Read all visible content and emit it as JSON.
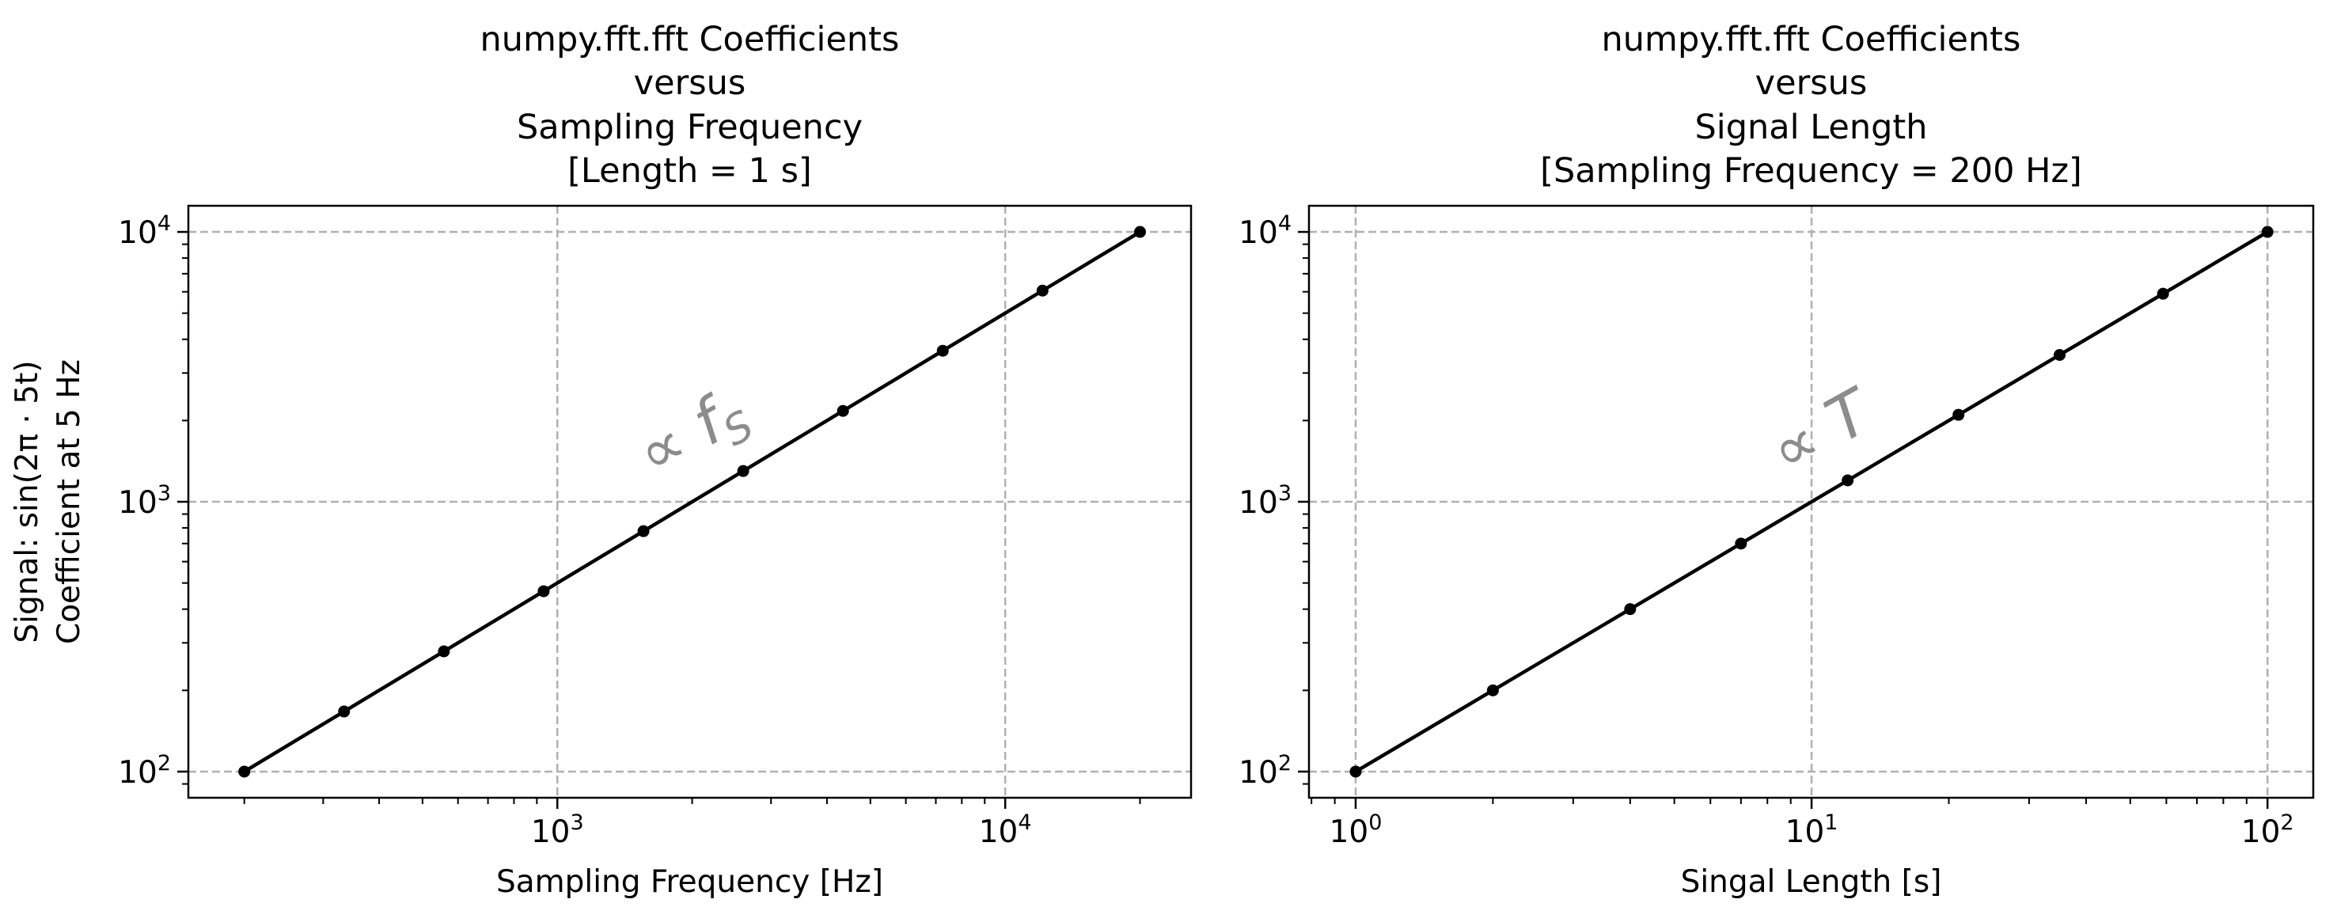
{
  "chart_data": [
    {
      "type": "line",
      "title": [
        "numpy.fft.fft Coefficients",
        "versus",
        "Sampling Frequency",
        "[Length = 1 s]"
      ],
      "xlabel": "Sampling Frequency [Hz]",
      "ylabel": [
        "Signal: sin(2π · 5t)",
        "Coefficient at 5 Hz"
      ],
      "xscale": "log",
      "yscale": "log",
      "xlim": [
        150,
        26000
      ],
      "ylim": [
        80,
        12500
      ],
      "xticks": [
        {
          "base": "10",
          "exp": "3",
          "value": 1000
        },
        {
          "base": "10",
          "exp": "4",
          "value": 10000
        }
      ],
      "yticks": [
        {
          "base": "10",
          "exp": "2",
          "value": 100
        },
        {
          "base": "10",
          "exp": "3",
          "value": 1000
        },
        {
          "base": "10",
          "exp": "4",
          "value": 10000
        }
      ],
      "grid": true,
      "series": [
        {
          "color": "#000000",
          "marker": "circle",
          "x": [
            200,
            334,
            558,
            932,
            1557,
            2600,
            4343,
            7254,
            12115,
            20000
          ],
          "y": [
            100,
            167,
            279,
            466,
            778,
            1300,
            2171,
            3627,
            6058,
            10000
          ]
        }
      ],
      "annotation": {
        "text": "∝ f",
        "sub": "S",
        "x": 2100,
        "y": 1550,
        "rotation_deg": -29,
        "color": "#8c8c8c"
      }
    },
    {
      "type": "line",
      "title": [
        "numpy.fft.fft Coefficients",
        "versus",
        "Signal Length",
        "[Sampling Frequency = 200 Hz]"
      ],
      "xlabel": "Singal Length [s]",
      "ylabel": [],
      "xscale": "log",
      "yscale": "log",
      "xlim": [
        0.79,
        126
      ],
      "ylim": [
        80,
        12500
      ],
      "xticks": [
        {
          "base": "10",
          "exp": "0",
          "value": 1
        },
        {
          "base": "10",
          "exp": "1",
          "value": 10
        },
        {
          "base": "10",
          "exp": "2",
          "value": 100
        }
      ],
      "yticks": [
        {
          "base": "10",
          "exp": "2",
          "value": 100
        },
        {
          "base": "10",
          "exp": "3",
          "value": 1000
        },
        {
          "base": "10",
          "exp": "4",
          "value": 10000
        }
      ],
      "grid": true,
      "series": [
        {
          "color": "#000000",
          "marker": "circle",
          "x": [
            1,
            2,
            4,
            7,
            12,
            21,
            35,
            59,
            100
          ],
          "y": [
            100,
            200,
            400,
            700,
            1200,
            2100,
            3500,
            5900,
            10000
          ]
        }
      ],
      "annotation": {
        "text": "∝ T",
        "sub": "",
        "x": 11,
        "y": 1550,
        "rotation_deg": -29,
        "color": "#8c8c8c"
      }
    }
  ]
}
